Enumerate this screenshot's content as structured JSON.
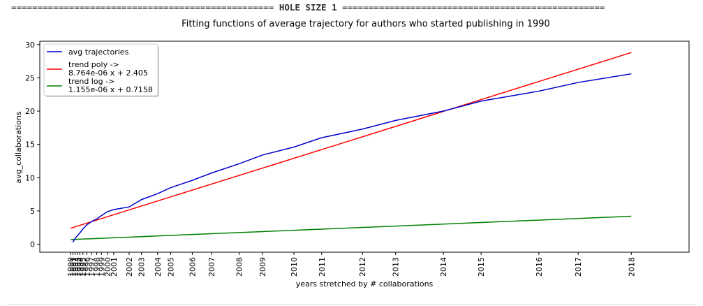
{
  "banner": {
    "left_rule": "==================================================",
    "title": "HOLE SIZE 1",
    "right_rule": "=================================================="
  },
  "chart_data": {
    "type": "line",
    "title": "Fitting functions of average trajectory for authors who started publishing in 1990",
    "xlabel": "years stretched by # collaborations",
    "ylabel": "avg_collaborations",
    "ylim": [
      -1.2,
      30.5
    ],
    "yticks": [
      0,
      5,
      10,
      15,
      20,
      25,
      30
    ],
    "grid": false,
    "legend_position": "upper-left",
    "x_ticks": [
      {
        "label": "1990",
        "x": 0
      },
      {
        "label": "1991",
        "x": 0.3
      },
      {
        "label": "1992",
        "x": 0.6
      },
      {
        "label": "1993",
        "x": 0.9
      },
      {
        "label": "1994",
        "x": 1.2
      },
      {
        "label": "1995",
        "x": 1.6
      },
      {
        "label": "1996",
        "x": 2.1
      },
      {
        "label": "1997",
        "x": 2.7
      },
      {
        "label": "1998",
        "x": 3.4
      },
      {
        "label": "1999",
        "x": 4.0
      },
      {
        "label": "2000",
        "x": 4.8
      },
      {
        "label": "2001",
        "x": 5.6
      },
      {
        "label": "2002",
        "x": 7.6
      },
      {
        "label": "2003",
        "x": 9.2
      },
      {
        "label": "2004",
        "x": 11.3
      },
      {
        "label": "2005",
        "x": 13.0
      },
      {
        "label": "2006",
        "x": 15.8
      },
      {
        "label": "2007",
        "x": 18.3
      },
      {
        "label": "2008",
        "x": 21.9
      },
      {
        "label": "2009",
        "x": 24.9
      },
      {
        "label": "2010",
        "x": 29.0
      },
      {
        "label": "2011",
        "x": 32.6
      },
      {
        "label": "2012",
        "x": 37.9
      },
      {
        "label": "2013",
        "x": 42.2
      },
      {
        "label": "2014",
        "x": 48.4
      },
      {
        "label": "2015",
        "x": 53.3
      },
      {
        "label": "2016",
        "x": 60.8
      },
      {
        "label": "2017",
        "x": 65.9
      },
      {
        "label": "2018",
        "x": 72.8
      }
    ],
    "series": [
      {
        "name": "avg trajectories",
        "color": "#0000cc",
        "y": [
          0.3,
          0.9,
          1.3,
          1.7,
          2.3,
          2.9,
          3.4,
          3.8,
          4.3,
          4.9,
          5.2,
          5.6,
          6.7,
          7.6,
          8.5,
          9.6,
          10.7,
          12.1,
          13.4,
          14.6,
          16.0,
          17.3,
          18.6,
          20.0,
          21.5,
          23.0,
          24.3,
          25.6
        ]
      },
      {
        "name": "trend poly ->",
        "name_line2": "8.764e-06 x + 2.405",
        "color": "#ff0000",
        "y_start": 2.4,
        "y_end": 28.8
      },
      {
        "name": "trend log ->",
        "name_line2": "1.155e-06 x + 0.7158",
        "color": "#008000",
        "y_start": 0.7,
        "y_end": 4.2
      }
    ]
  }
}
